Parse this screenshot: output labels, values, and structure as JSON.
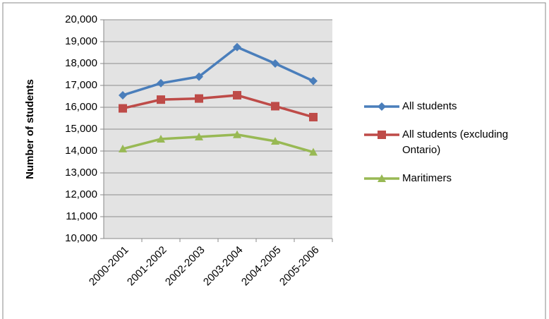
{
  "chart_data": {
    "type": "line",
    "y_label": "Number of students",
    "categories": [
      "2000-2001",
      "2001-2002",
      "2002-2003",
      "2003-2004",
      "2004-2005",
      "2005-2006"
    ],
    "series": [
      {
        "name": "All students",
        "color": "#4a7ebb",
        "marker": "diamond",
        "values": [
          16550,
          17100,
          17400,
          18750,
          18000,
          17200
        ]
      },
      {
        "name": "All students (excluding Ontario)",
        "color": "#be4b48",
        "marker": "square",
        "values": [
          15950,
          16350,
          16400,
          16550,
          16050,
          15550
        ]
      },
      {
        "name": "Maritimers",
        "color": "#98b954",
        "marker": "triangle",
        "values": [
          14100,
          14550,
          14650,
          14750,
          14450,
          13950
        ]
      }
    ],
    "ylim": [
      10000,
      20000
    ],
    "yticks": [
      {
        "value": 10000,
        "label": "10,000"
      },
      {
        "value": 11000,
        "label": "11,000"
      },
      {
        "value": 12000,
        "label": "12,000"
      },
      {
        "value": 13000,
        "label": "13,000"
      },
      {
        "value": 14000,
        "label": "14,000"
      },
      {
        "value": 15000,
        "label": "15,000"
      },
      {
        "value": 16000,
        "label": "16,000"
      },
      {
        "value": 17000,
        "label": "17,000"
      },
      {
        "value": 18000,
        "label": "18,000"
      },
      {
        "value": 19000,
        "label": "19,000"
      },
      {
        "value": 20000,
        "label": "20,000"
      }
    ],
    "grid": true,
    "legend": "right"
  }
}
